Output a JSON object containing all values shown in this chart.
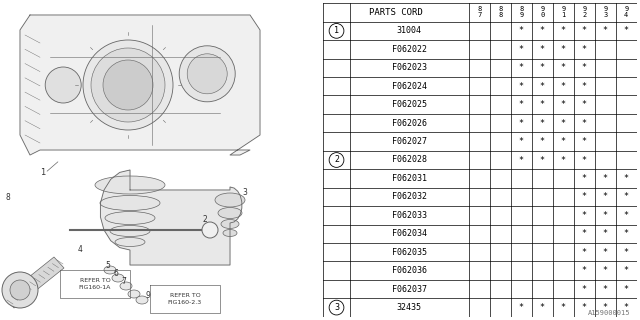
{
  "watermark": "A159000015",
  "table": {
    "rows": [
      {
        "ref": "1",
        "part": "31004",
        "marks": [
          0,
          0,
          1,
          1,
          1,
          1,
          1,
          1
        ]
      },
      {
        "ref": "",
        "part": "F062022",
        "marks": [
          0,
          0,
          1,
          1,
          1,
          1,
          0,
          0
        ]
      },
      {
        "ref": "",
        "part": "F062023",
        "marks": [
          0,
          0,
          1,
          1,
          1,
          1,
          0,
          0
        ]
      },
      {
        "ref": "",
        "part": "F062024",
        "marks": [
          0,
          0,
          1,
          1,
          1,
          1,
          0,
          0
        ]
      },
      {
        "ref": "",
        "part": "F062025",
        "marks": [
          0,
          0,
          1,
          1,
          1,
          1,
          0,
          0
        ]
      },
      {
        "ref": "",
        "part": "F062026",
        "marks": [
          0,
          0,
          1,
          1,
          1,
          1,
          0,
          0
        ]
      },
      {
        "ref": "",
        "part": "F062027",
        "marks": [
          0,
          0,
          1,
          1,
          1,
          1,
          0,
          0
        ]
      },
      {
        "ref": "2",
        "part": "F062028",
        "marks": [
          0,
          0,
          1,
          1,
          1,
          1,
          0,
          0
        ]
      },
      {
        "ref": "",
        "part": "F062031",
        "marks": [
          0,
          0,
          0,
          0,
          0,
          1,
          1,
          1
        ]
      },
      {
        "ref": "",
        "part": "F062032",
        "marks": [
          0,
          0,
          0,
          0,
          0,
          1,
          1,
          1
        ]
      },
      {
        "ref": "",
        "part": "F062033",
        "marks": [
          0,
          0,
          0,
          0,
          0,
          1,
          1,
          1
        ]
      },
      {
        "ref": "",
        "part": "F062034",
        "marks": [
          0,
          0,
          0,
          0,
          0,
          1,
          1,
          1
        ]
      },
      {
        "ref": "",
        "part": "F062035",
        "marks": [
          0,
          0,
          0,
          0,
          0,
          1,
          1,
          1
        ]
      },
      {
        "ref": "",
        "part": "F062036",
        "marks": [
          0,
          0,
          0,
          0,
          0,
          1,
          1,
          1
        ]
      },
      {
        "ref": "",
        "part": "F062037",
        "marks": [
          0,
          0,
          0,
          0,
          0,
          1,
          1,
          1
        ]
      },
      {
        "ref": "3",
        "part": "32435",
        "marks": [
          0,
          0,
          1,
          1,
          1,
          1,
          1,
          1
        ]
      }
    ]
  },
  "bg_color": "#ffffff",
  "text_color": "#000000",
  "gray": "#888888",
  "font_size": 6.0,
  "star": "*",
  "year_labels": [
    "8\n7",
    "8\n8",
    "8\n9",
    "9\n0",
    "9\n1",
    "9\n2",
    "9\n3",
    "9\n4"
  ],
  "refer1": "REFER TO\nFIG160-1A",
  "refer2": "REFER TO\nFIG160-2.3"
}
